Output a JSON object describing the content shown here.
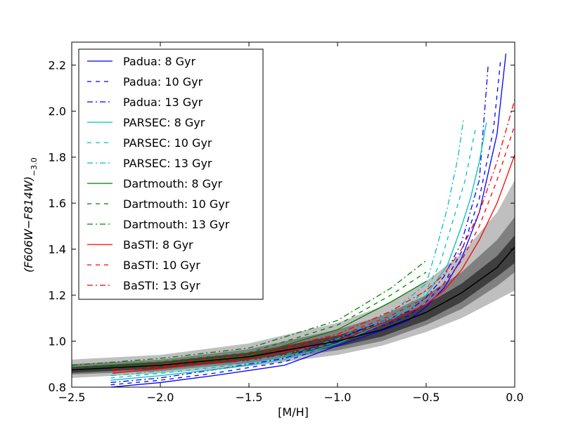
{
  "chart_data": {
    "type": "line",
    "xlabel": "[M/H]",
    "ylabel": "(F606W−F814W)",
    "ylabel_subscript": "−3.0",
    "xlim": [
      -2.5,
      0.0
    ],
    "ylim": [
      0.8,
      2.3
    ],
    "xticks": [
      -2.5,
      -2.0,
      -1.5,
      -1.0,
      -0.5,
      0.0
    ],
    "xtick_labels": [
      "−2.5",
      "−2.0",
      "−1.5",
      "−1.0",
      "−0.5",
      "0.0"
    ],
    "yticks": [
      0.8,
      1.0,
      1.2,
      1.4,
      1.6,
      1.8,
      2.0,
      2.2
    ],
    "ytick_labels": [
      "0.8",
      "1.0",
      "1.2",
      "1.4",
      "1.6",
      "1.8",
      "2.0",
      "2.2"
    ],
    "legend_position": "upper-left",
    "grid": false,
    "colors": {
      "Padua": "#0000ff",
      "PARSEC": "#00bfbf",
      "Dartmouth": "#008000",
      "BaSTI": "#ff0000",
      "mean": "#000000",
      "band_outer": "#bfbfbf",
      "band_mid": "#808080",
      "band_inner": "#3f3f3f"
    },
    "bands": [
      {
        "level": "outer",
        "x": [
          -2.5,
          -2.0,
          -1.5,
          -1.0,
          -0.75,
          -0.5,
          -0.3,
          -0.1,
          0.0
        ],
        "lower": [
          0.84,
          0.86,
          0.89,
          0.94,
          0.98,
          1.04,
          1.1,
          1.18,
          1.22
        ],
        "upper": [
          0.92,
          0.94,
          0.99,
          1.08,
          1.15,
          1.26,
          1.38,
          1.56,
          1.7
        ]
      },
      {
        "level": "mid",
        "x": [
          -2.5,
          -2.0,
          -1.5,
          -1.0,
          -0.75,
          -0.5,
          -0.3,
          -0.1,
          0.0
        ],
        "lower": [
          0.855,
          0.87,
          0.905,
          0.96,
          1.0,
          1.07,
          1.14,
          1.24,
          1.3
        ],
        "upper": [
          0.9,
          0.92,
          0.965,
          1.05,
          1.11,
          1.2,
          1.3,
          1.44,
          1.54
        ]
      },
      {
        "level": "inner",
        "x": [
          -2.5,
          -2.0,
          -1.5,
          -1.0,
          -0.75,
          -0.5,
          -0.3,
          -0.1,
          0.0
        ],
        "lower": [
          0.862,
          0.88,
          0.915,
          0.975,
          1.02,
          1.09,
          1.17,
          1.28,
          1.34
        ],
        "upper": [
          0.888,
          0.91,
          0.95,
          1.025,
          1.08,
          1.16,
          1.25,
          1.37,
          1.46
        ]
      }
    ],
    "mean_line": {
      "x": [
        -2.5,
        -2.0,
        -1.5,
        -1.0,
        -0.75,
        -0.5,
        -0.3,
        -0.1,
        0.0
      ],
      "y": [
        0.875,
        0.895,
        0.932,
        1.0,
        1.05,
        1.125,
        1.21,
        1.32,
        1.41
      ]
    },
    "series": [
      {
        "name": "Padua:  8 Gyr",
        "model": "Padua",
        "style": "solid",
        "x": [
          -2.28,
          -2.0,
          -1.7,
          -1.3,
          -1.0,
          -0.7,
          -0.6,
          -0.5,
          -0.4,
          -0.3,
          -0.2,
          -0.1,
          -0.05
        ],
        "y": [
          0.8,
          0.82,
          0.85,
          0.895,
          0.98,
          1.06,
          1.09,
          1.15,
          1.23,
          1.36,
          1.56,
          1.9,
          2.25
        ]
      },
      {
        "name": "Padua: 10 Gyr",
        "model": "Padua",
        "style": "dashed",
        "x": [
          -2.28,
          -2.0,
          -1.7,
          -1.3,
          -1.0,
          -0.7,
          -0.6,
          -0.5,
          -0.4,
          -0.3,
          -0.2,
          -0.12,
          -0.08
        ],
        "y": [
          0.81,
          0.83,
          0.86,
          0.91,
          0.995,
          1.08,
          1.11,
          1.17,
          1.25,
          1.39,
          1.62,
          1.92,
          2.22
        ]
      },
      {
        "name": "Padua: 13 Gyr",
        "model": "Padua",
        "style": "dashdot",
        "x": [
          -2.28,
          -2.0,
          -1.7,
          -1.3,
          -1.0,
          -0.7,
          -0.6,
          -0.5,
          -0.4,
          -0.3,
          -0.2,
          -0.15
        ],
        "y": [
          0.82,
          0.84,
          0.875,
          0.925,
          1.01,
          1.1,
          1.13,
          1.19,
          1.28,
          1.43,
          1.7,
          2.2
        ]
      },
      {
        "name": "PARSEC: 8 Gyr",
        "model": "PARSEC",
        "style": "solid",
        "x": [
          -2.28,
          -2.0,
          -1.6,
          -1.3,
          -1.0,
          -0.7,
          -0.5,
          -0.38,
          -0.3,
          -0.25,
          -0.2,
          -0.16
        ],
        "y": [
          0.83,
          0.85,
          0.885,
          0.92,
          0.99,
          1.09,
          1.2,
          1.33,
          1.5,
          1.62,
          1.78,
          1.95
        ]
      },
      {
        "name": "PARSEC: 10 Gyr",
        "model": "PARSEC",
        "style": "dashed",
        "x": [
          -2.28,
          -2.0,
          -1.6,
          -1.3,
          -1.0,
          -0.7,
          -0.5,
          -0.42,
          -0.35,
          -0.28,
          -0.22
        ],
        "y": [
          0.84,
          0.86,
          0.895,
          0.93,
          1.0,
          1.1,
          1.22,
          1.34,
          1.52,
          1.7,
          1.93
        ]
      },
      {
        "name": "PARSEC: 13 Gyr",
        "model": "PARSEC",
        "style": "dashdot",
        "x": [
          -2.28,
          -2.0,
          -1.6,
          -1.3,
          -1.0,
          -0.7,
          -0.5,
          -0.45,
          -0.38,
          -0.32,
          -0.29
        ],
        "y": [
          0.85,
          0.87,
          0.905,
          0.94,
          1.01,
          1.12,
          1.25,
          1.38,
          1.58,
          1.8,
          1.96
        ]
      },
      {
        "name": "Dartmouth:  8 Gyr",
        "model": "Dartmouth",
        "style": "solid",
        "x": [
          -2.5,
          -2.0,
          -1.5,
          -1.0,
          -0.7,
          -0.5
        ],
        "y": [
          0.875,
          0.9,
          0.935,
          1.05,
          1.17,
          1.26
        ]
      },
      {
        "name": "Dartmouth: 10 Gyr",
        "model": "Dartmouth",
        "style": "dashed",
        "x": [
          -2.5,
          -2.0,
          -1.5,
          -1.0,
          -0.7,
          -0.5
        ],
        "y": [
          0.885,
          0.91,
          0.95,
          1.07,
          1.2,
          1.3
        ]
      },
      {
        "name": "Dartmouth: 13 Gyr",
        "model": "Dartmouth",
        "style": "dashdot",
        "x": [
          -2.5,
          -2.0,
          -1.5,
          -1.0,
          -0.7,
          -0.5
        ],
        "y": [
          0.895,
          0.925,
          0.97,
          1.09,
          1.23,
          1.35
        ]
      },
      {
        "name": "BaSTI:  8 Gyr",
        "model": "BaSTI",
        "style": "solid",
        "x": [
          -2.27,
          -2.0,
          -1.5,
          -1.0,
          -0.7,
          -0.5,
          -0.4,
          -0.3,
          -0.2,
          -0.1,
          0.0
        ],
        "y": [
          0.86,
          0.88,
          0.92,
          1.0,
          1.09,
          1.16,
          1.22,
          1.31,
          1.44,
          1.6,
          1.81
        ]
      },
      {
        "name": "BaSTI: 10 Gyr",
        "model": "BaSTI",
        "style": "dashed",
        "x": [
          -2.27,
          -2.0,
          -1.5,
          -1.0,
          -0.7,
          -0.5,
          -0.4,
          -0.3,
          -0.2,
          -0.1,
          0.0
        ],
        "y": [
          0.87,
          0.89,
          0.93,
          1.02,
          1.11,
          1.19,
          1.25,
          1.35,
          1.5,
          1.7,
          1.94
        ]
      },
      {
        "name": "BaSTI: 13 Gyr",
        "model": "BaSTI",
        "style": "dashdot",
        "x": [
          -2.27,
          -2.0,
          -1.5,
          -1.0,
          -0.7,
          -0.5,
          -0.4,
          -0.3,
          -0.2,
          -0.1,
          0.0
        ],
        "y": [
          0.88,
          0.9,
          0.94,
          1.03,
          1.13,
          1.22,
          1.29,
          1.4,
          1.56,
          1.78,
          2.05
        ]
      }
    ]
  }
}
